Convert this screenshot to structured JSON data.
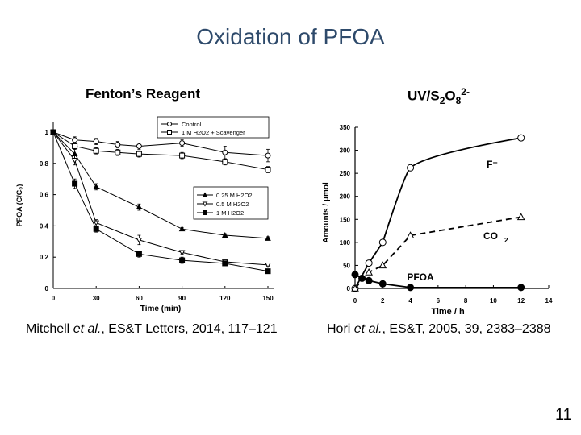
{
  "slide": {
    "title": "Oxidation of PFOA",
    "page_number": "11"
  },
  "left_panel": {
    "heading": "Fenton’s Reagent",
    "citation": {
      "authors": "Mitchell ",
      "etal": "et al.",
      "journal": ", ES&T Letters",
      "rest": ", 2014, 117‒121"
    }
  },
  "right_panel": {
    "heading": {
      "base": "UV/S",
      "sub1": "2",
      "mid": "O",
      "sub2": "8",
      "sup": "2-"
    },
    "citation": {
      "authors": "Hori ",
      "etal": "et al.",
      "journal": ", ES&T",
      "rest": ", 2005, 39, 2383‒2388"
    }
  },
  "chart_data": [
    {
      "type": "line",
      "xlabel": "Time (min)",
      "ylabel": "PFOA (C/C₀)",
      "xlim": [
        0,
        150
      ],
      "ylim": [
        0,
        1
      ],
      "xticks": [
        0,
        30,
        60,
        90,
        120,
        150
      ],
      "yticks": [
        0,
        0.2,
        0.4,
        0.6,
        0.8,
        1
      ],
      "ytick_labels": [
        "0",
        "0.2",
        "0.4",
        "0.6",
        "0.8",
        "1"
      ],
      "legends": [
        {
          "placement": "top-right",
          "entries": [
            "Control",
            "1 M H2O2 + Scavenger"
          ]
        },
        {
          "placement": "middle-right",
          "entries": [
            "0.25 M H2O2",
            "0.5 M H2O2",
            "1 M H2O2"
          ]
        }
      ],
      "series": [
        {
          "name": "Control",
          "marker": "open-circle",
          "x": [
            0,
            15,
            30,
            45,
            60,
            90,
            120,
            150
          ],
          "y": [
            1.0,
            0.95,
            0.94,
            0.92,
            0.91,
            0.93,
            0.87,
            0.85
          ],
          "err": [
            0,
            0.02,
            0.02,
            0.02,
            0.02,
            0.02,
            0.04,
            0.04
          ]
        },
        {
          "name": "1 M H2O2 + Scavenger",
          "marker": "open-square",
          "x": [
            0,
            15,
            30,
            45,
            60,
            90,
            120,
            150
          ],
          "y": [
            1.0,
            0.91,
            0.88,
            0.87,
            0.86,
            0.85,
            0.81,
            0.76
          ],
          "err": [
            0,
            0.02,
            0.02,
            0.02,
            0.02,
            0.02,
            0.02,
            0.02
          ]
        },
        {
          "name": "0.25 M H2O2",
          "marker": "filled-triangle",
          "x": [
            0,
            15,
            30,
            60,
            90,
            120,
            150
          ],
          "y": [
            1.0,
            0.86,
            0.65,
            0.52,
            0.38,
            0.34,
            0.32
          ],
          "err": [
            0,
            0.03,
            0.02,
            0.02,
            0.01,
            0.01,
            0.01
          ]
        },
        {
          "name": "0.5 M H2O2",
          "marker": "open-down-triangle",
          "x": [
            0,
            15,
            30,
            60,
            90,
            120,
            150
          ],
          "y": [
            1.0,
            0.82,
            0.42,
            0.31,
            0.23,
            0.17,
            0.15
          ],
          "err": [
            0,
            0.03,
            0.02,
            0.03,
            0.01,
            0.01,
            0.01
          ]
        },
        {
          "name": "1 M H2O2",
          "marker": "filled-square",
          "x": [
            0,
            15,
            30,
            60,
            90,
            120,
            150
          ],
          "y": [
            1.0,
            0.67,
            0.38,
            0.22,
            0.18,
            0.16,
            0.11
          ],
          "err": [
            0,
            0.03,
            0.02,
            0.02,
            0.02,
            0.01,
            0.01
          ]
        }
      ]
    },
    {
      "type": "line",
      "xlabel": "Time / h",
      "ylabel": "Amounts / μmol",
      "xlim": [
        0,
        14
      ],
      "ylim": [
        0,
        350
      ],
      "xticks": [
        0,
        2,
        4,
        6,
        8,
        10,
        12,
        14
      ],
      "yticks": [
        0,
        50,
        100,
        150,
        200,
        250,
        300,
        350
      ],
      "annotations": [
        "F⁻",
        "CO",
        "2",
        "PFOA"
      ],
      "series": [
        {
          "name": "F⁻",
          "marker": "open-circle",
          "style": "solid",
          "x": [
            0,
            1,
            2,
            4,
            12
          ],
          "y": [
            0,
            55,
            100,
            262,
            327
          ]
        },
        {
          "name": "CO2",
          "marker": "open-triangle",
          "style": "dashed",
          "x": [
            0,
            1,
            2,
            4,
            12
          ],
          "y": [
            0,
            35,
            50,
            115,
            155
          ]
        },
        {
          "name": "PFOA",
          "marker": "filled-circle",
          "style": "solid",
          "x": [
            0,
            0.5,
            1,
            2,
            4,
            12
          ],
          "y": [
            30,
            22,
            17,
            10,
            2,
            2
          ]
        }
      ]
    }
  ]
}
